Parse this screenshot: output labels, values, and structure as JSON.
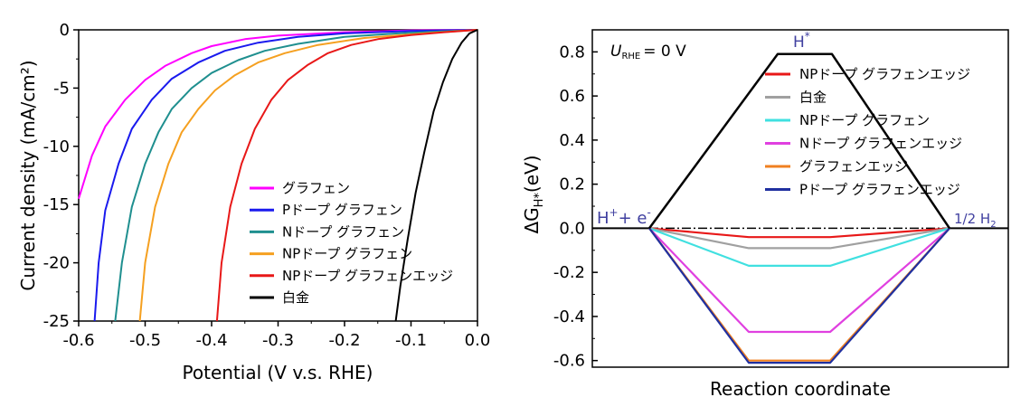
{
  "chart_data": [
    {
      "type": "line",
      "xlabel": "Potential (V v.s. RHE)",
      "ylabel": "Current density (mA/cm²)",
      "xlim": [
        -0.6,
        0.0
      ],
      "ylim": [
        -25,
        0
      ],
      "xticks": [
        "-0.6",
        "-0.5",
        "-0.4",
        "-0.3",
        "-0.2",
        "-0.1",
        "0.0"
      ],
      "yticks": [
        "0",
        "-5",
        "-10",
        "-15",
        "-20",
        "-25"
      ],
      "legend_position": "bottom-right",
      "series": [
        {
          "name": "グラフェン",
          "color": "#ff00ff",
          "points": [
            [
              -0.6,
              -14.5
            ],
            [
              -0.58,
              -10.8
            ],
            [
              -0.56,
              -8.3
            ],
            [
              -0.53,
              -6.0
            ],
            [
              -0.5,
              -4.3
            ],
            [
              -0.47,
              -3.1
            ],
            [
              -0.43,
              -2.0
            ],
            [
              -0.4,
              -1.4
            ],
            [
              -0.35,
              -0.8
            ],
            [
              -0.3,
              -0.5
            ],
            [
              -0.2,
              -0.2
            ],
            [
              -0.1,
              -0.05
            ],
            [
              0.0,
              0.0
            ]
          ]
        },
        {
          "name": "Pドープ グラフェン",
          "color": "#1a1aee",
          "points": [
            [
              -0.576,
              -25
            ],
            [
              -0.57,
              -20
            ],
            [
              -0.56,
              -15.5
            ],
            [
              -0.54,
              -11.5
            ],
            [
              -0.52,
              -8.5
            ],
            [
              -0.49,
              -6.0
            ],
            [
              -0.46,
              -4.2
            ],
            [
              -0.42,
              -2.8
            ],
            [
              -0.38,
              -1.8
            ],
            [
              -0.33,
              -1.1
            ],
            [
              -0.27,
              -0.6
            ],
            [
              -0.2,
              -0.3
            ],
            [
              -0.1,
              -0.1
            ],
            [
              0.0,
              0.0
            ]
          ]
        },
        {
          "name": "Nドープ グラフェン",
          "color": "#1f8f8f",
          "points": [
            [
              -0.545,
              -25
            ],
            [
              -0.535,
              -20
            ],
            [
              -0.52,
              -15.2
            ],
            [
              -0.5,
              -11.5
            ],
            [
              -0.48,
              -8.8
            ],
            [
              -0.46,
              -6.8
            ],
            [
              -0.43,
              -5.0
            ],
            [
              -0.4,
              -3.7
            ],
            [
              -0.36,
              -2.6
            ],
            [
              -0.32,
              -1.8
            ],
            [
              -0.27,
              -1.2
            ],
            [
              -0.2,
              -0.6
            ],
            [
              -0.12,
              -0.3
            ],
            [
              0.0,
              0.0
            ]
          ]
        },
        {
          "name": "NPドープ グラフェン",
          "color": "#f5a020",
          "points": [
            [
              -0.508,
              -25
            ],
            [
              -0.5,
              -20
            ],
            [
              -0.485,
              -15.2
            ],
            [
              -0.465,
              -11.5
            ],
            [
              -0.445,
              -8.8
            ],
            [
              -0.42,
              -6.8
            ],
            [
              -0.395,
              -5.2
            ],
            [
              -0.365,
              -3.9
            ],
            [
              -0.33,
              -2.8
            ],
            [
              -0.29,
              -2.0
            ],
            [
              -0.24,
              -1.3
            ],
            [
              -0.17,
              -0.7
            ],
            [
              -0.08,
              -0.3
            ],
            [
              0.0,
              0.0
            ]
          ]
        },
        {
          "name": "NPドープ グラフェンエッジ",
          "color": "#e81818",
          "points": [
            [
              -0.392,
              -25
            ],
            [
              -0.385,
              -20
            ],
            [
              -0.372,
              -15.2
            ],
            [
              -0.355,
              -11.5
            ],
            [
              -0.335,
              -8.5
            ],
            [
              -0.31,
              -6.0
            ],
            [
              -0.285,
              -4.3
            ],
            [
              -0.255,
              -3.0
            ],
            [
              -0.225,
              -2.0
            ],
            [
              -0.19,
              -1.3
            ],
            [
              -0.15,
              -0.8
            ],
            [
              -0.1,
              -0.45
            ],
            [
              -0.05,
              -0.2
            ],
            [
              0.0,
              0.0
            ]
          ]
        },
        {
          "name": "白金",
          "color": "#000000",
          "points": [
            [
              -0.123,
              -25
            ],
            [
              -0.116,
              -22
            ],
            [
              -0.105,
              -18
            ],
            [
              -0.093,
              -14
            ],
            [
              -0.08,
              -10.5
            ],
            [
              -0.066,
              -7.0
            ],
            [
              -0.052,
              -4.5
            ],
            [
              -0.038,
              -2.5
            ],
            [
              -0.024,
              -1.1
            ],
            [
              -0.012,
              -0.3
            ],
            [
              0.0,
              0.0
            ]
          ]
        }
      ]
    },
    {
      "type": "line",
      "xlabel": "Reaction coordinate",
      "ylabel": "ΔG",
      "ylabel_sub": "H*",
      "ylabel_unit": "(eV)",
      "ylim": [
        -0.63,
        0.9
      ],
      "yticks": [
        "0.8",
        "0.6",
        "0.4",
        "0.2",
        "0.0",
        "-0.2",
        "-0.4",
        "-0.6"
      ],
      "condition_prefix": "U",
      "condition_sub": "RHE",
      "condition_value": "= 0 V",
      "state_left": "H",
      "state_left_sup1": "+",
      "state_left_plus": "+ e",
      "state_left_sup2": "-",
      "state_top": "H",
      "state_top_sup": "*",
      "state_right": "1/2 H",
      "state_right_sub": "2",
      "legend_position": "top-right",
      "series": [
        {
          "name": "NPドープ グラフェンエッジ",
          "color": "#e81818",
          "dG": -0.04
        },
        {
          "name": "白金",
          "color": "#a0a0a0",
          "dG": -0.09
        },
        {
          "name": "NPドープ グラフェン",
          "color": "#40e0e0",
          "dG": -0.17
        },
        {
          "name": "Nドープ グラフェンエッジ",
          "color": "#e040e0",
          "dG": -0.47
        },
        {
          "name": "グラフェンエッジ",
          "color": "#f08020",
          "dG": -0.6
        },
        {
          "name": "Pドープ グラフェンエッジ",
          "color": "#2030a0",
          "dG": -0.61
        },
        {
          "name": "",
          "color": "#000000",
          "dG": 0.79
        }
      ]
    }
  ]
}
